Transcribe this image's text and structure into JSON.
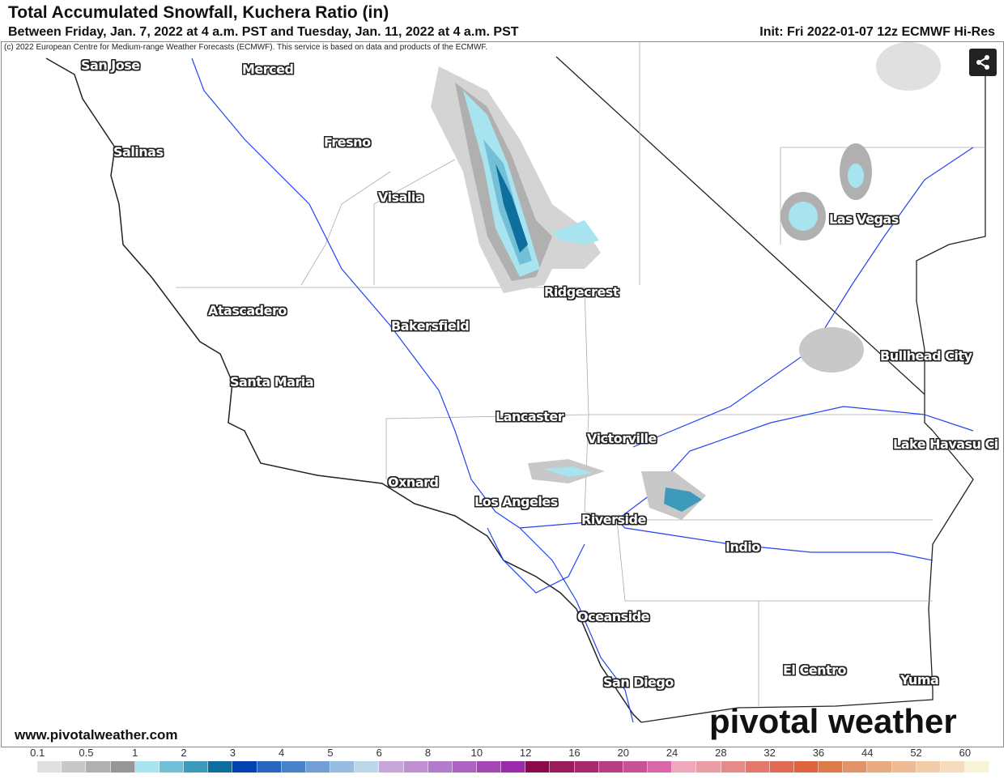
{
  "header": {
    "title": "Total Accumulated Snowfall, Kuchera Ratio (in)",
    "subtitle": "Between Friday, Jan. 7, 2022 at 4 a.m. PST and Tuesday, Jan. 11, 2022 at 4 a.m. PST",
    "init": "Init: Fri 2022-01-07 12z ECMWF Hi-Res"
  },
  "map": {
    "copyright": "(c) 2022 European Centre for Medium-range Weather Forecasts (ECMWF). This service is based on data and products of the ECMWF.",
    "share_icon": "share-icon",
    "cities": [
      {
        "name": "San Jose"
      },
      {
        "name": "Merced"
      },
      {
        "name": "Fresno"
      },
      {
        "name": "Salinas"
      },
      {
        "name": "Visalia"
      },
      {
        "name": "Ridgecrest"
      },
      {
        "name": "Las Vegas"
      },
      {
        "name": "Atascadero"
      },
      {
        "name": "Bakersfield"
      },
      {
        "name": "Bullhead City"
      },
      {
        "name": "Santa Maria"
      },
      {
        "name": "Lancaster"
      },
      {
        "name": "Victorville"
      },
      {
        "name": "Lake Havasu Ci"
      },
      {
        "name": "Oxnard"
      },
      {
        "name": "Los Angeles"
      },
      {
        "name": "Riverside"
      },
      {
        "name": "Indio"
      },
      {
        "name": "Oceanside"
      },
      {
        "name": "El Centro"
      },
      {
        "name": "San Diego"
      },
      {
        "name": "Yuma"
      }
    ]
  },
  "footer": {
    "site": "www.pivotalweather.com",
    "logo": "pivotal weather"
  },
  "legend": {
    "labels": [
      "0.1",
      "0.5",
      "1",
      "2",
      "3",
      "4",
      "5",
      "6",
      "8",
      "10",
      "12",
      "16",
      "20",
      "24",
      "28",
      "32",
      "36",
      "44",
      "52",
      "60"
    ],
    "colors": [
      "#ffffff",
      "#e0e0e0",
      "#c8c8c8",
      "#b0b0b0",
      "#969696",
      "#a8e4ef",
      "#74bfd8",
      "#3d9abb",
      "#0e6f9e",
      "#0343b0",
      "#2866c0",
      "#4a82c8",
      "#72a0d4",
      "#98bce0",
      "#bcd8e8",
      "#c7a6da",
      "#c090d0",
      "#b47acb",
      "#ac62c0",
      "#a347b5",
      "#9b2aa8",
      "#8b0a4a",
      "#9a1c5c",
      "#a82a6c",
      "#b83e82",
      "#c85296",
      "#d866a8",
      "#eea8bc",
      "#e89ea4",
      "#e68a88",
      "#e4786c",
      "#e06a54",
      "#de6440",
      "#dc7a48",
      "#e29468",
      "#e8aa80",
      "#eebc94",
      "#f2cca8",
      "#f4dcbc",
      "#f8f4d8"
    ]
  }
}
